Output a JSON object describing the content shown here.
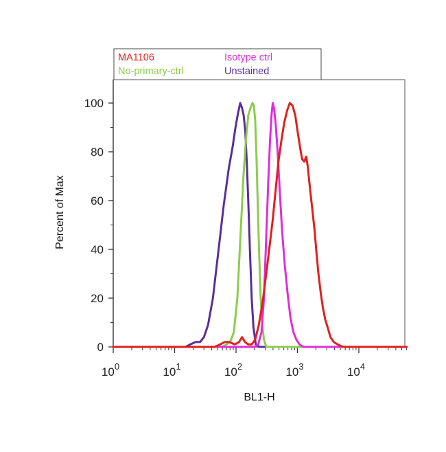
{
  "chart_data": {
    "type": "line",
    "title": "",
    "xlabel": "BL1-H",
    "ylabel": "Percent of Max",
    "x_scale": "log",
    "xlim": [
      1,
      60000
    ],
    "ylim": [
      0,
      105
    ],
    "grid": false,
    "legend_placement": "top",
    "x_ticks": [
      {
        "base": "10",
        "exp": "0",
        "value": 1
      },
      {
        "base": "10",
        "exp": "1",
        "value": 10
      },
      {
        "base": "10",
        "exp": "2",
        "value": 100
      },
      {
        "base": "10",
        "exp": "3",
        "value": 1000
      },
      {
        "base": "10",
        "exp": "4",
        "value": 10000
      }
    ],
    "y_ticks": [
      {
        "label": "0",
        "value": 0
      },
      {
        "label": "20",
        "value": 20
      },
      {
        "label": "40",
        "value": 40
      },
      {
        "label": "60",
        "value": 60
      },
      {
        "label": "80",
        "value": 80
      },
      {
        "label": "100",
        "value": 100
      }
    ],
    "series": [
      {
        "name": "Unstained",
        "color": "#5a2d9c",
        "points": [
          [
            1,
            0
          ],
          [
            15,
            0
          ],
          [
            18,
            1
          ],
          [
            22,
            2
          ],
          [
            26,
            2
          ],
          [
            30,
            4
          ],
          [
            35,
            9
          ],
          [
            42,
            20
          ],
          [
            52,
            40
          ],
          [
            63,
            58
          ],
          [
            76,
            73
          ],
          [
            88,
            82
          ],
          [
            98,
            90
          ],
          [
            108,
            96
          ],
          [
            117,
            100
          ],
          [
            125,
            98
          ],
          [
            133,
            95
          ],
          [
            142,
            88
          ],
          [
            150,
            75
          ],
          [
            158,
            60
          ],
          [
            168,
            40
          ],
          [
            180,
            20
          ],
          [
            192,
            8
          ],
          [
            210,
            1
          ],
          [
            240,
            0
          ],
          [
            60000,
            0
          ]
        ]
      },
      {
        "name": "No-primary-ctrl",
        "color": "#8ccc4c",
        "points": [
          [
            1,
            0
          ],
          [
            60,
            0
          ],
          [
            70,
            1
          ],
          [
            80,
            2
          ],
          [
            92,
            6
          ],
          [
            105,
            20
          ],
          [
            118,
            45
          ],
          [
            132,
            70
          ],
          [
            145,
            85
          ],
          [
            158,
            95
          ],
          [
            172,
            98
          ],
          [
            185,
            100
          ],
          [
            195,
            99
          ],
          [
            205,
            93
          ],
          [
            215,
            78
          ],
          [
            225,
            60
          ],
          [
            237,
            40
          ],
          [
            250,
            22
          ],
          [
            265,
            10
          ],
          [
            285,
            3
          ],
          [
            310,
            0
          ],
          [
            60000,
            0
          ]
        ]
      },
      {
        "name": "Isotype ctrl",
        "color": "#e02ed8",
        "points": [
          [
            1,
            0
          ],
          [
            200,
            0
          ],
          [
            230,
            1
          ],
          [
            260,
            6
          ],
          [
            285,
            20
          ],
          [
            310,
            45
          ],
          [
            335,
            68
          ],
          [
            358,
            85
          ],
          [
            378,
            95
          ],
          [
            396,
            100
          ],
          [
            415,
            98
          ],
          [
            440,
            92
          ],
          [
            470,
            82
          ],
          [
            510,
            66
          ],
          [
            560,
            48
          ],
          [
            620,
            34
          ],
          [
            690,
            22
          ],
          [
            770,
            12
          ],
          [
            860,
            6
          ],
          [
            960,
            3
          ],
          [
            1080,
            1
          ],
          [
            1250,
            0
          ],
          [
            60000,
            0
          ]
        ]
      },
      {
        "name": "MA1106",
        "color": "#e0201c",
        "points": [
          [
            1,
            0
          ],
          [
            45,
            0
          ],
          [
            55,
            1
          ],
          [
            65,
            2
          ],
          [
            78,
            2
          ],
          [
            95,
            1
          ],
          [
            112,
            2
          ],
          [
            125,
            4
          ],
          [
            140,
            2
          ],
          [
            158,
            1
          ],
          [
            180,
            1
          ],
          [
            205,
            3
          ],
          [
            235,
            9
          ],
          [
            270,
            18
          ],
          [
            310,
            30
          ],
          [
            355,
            42
          ],
          [
            395,
            52
          ],
          [
            440,
            64
          ],
          [
            490,
            76
          ],
          [
            550,
            85
          ],
          [
            610,
            92
          ],
          [
            680,
            97
          ],
          [
            750,
            100
          ],
          [
            830,
            99
          ],
          [
            920,
            95
          ],
          [
            1010,
            88
          ],
          [
            1100,
            82
          ],
          [
            1190,
            77
          ],
          [
            1290,
            76
          ],
          [
            1390,
            78
          ],
          [
            1470,
            74
          ],
          [
            1600,
            65
          ],
          [
            1750,
            56
          ],
          [
            1900,
            48
          ],
          [
            2050,
            38
          ],
          [
            2200,
            30
          ],
          [
            2400,
            22
          ],
          [
            2600,
            16
          ],
          [
            2850,
            11
          ],
          [
            3100,
            8
          ],
          [
            3450,
            4
          ],
          [
            3900,
            2
          ],
          [
            4500,
            1
          ],
          [
            5500,
            0
          ],
          [
            60000,
            0
          ]
        ]
      }
    ]
  },
  "legend": {
    "items": [
      {
        "label": "MA1106",
        "color": "#e0201c"
      },
      {
        "label": "Isotype ctrl",
        "color": "#e02ed8"
      },
      {
        "label": "No-primary-ctrl",
        "color": "#8ccc4c"
      },
      {
        "label": "Unstained",
        "color": "#5a2d9c"
      }
    ]
  }
}
